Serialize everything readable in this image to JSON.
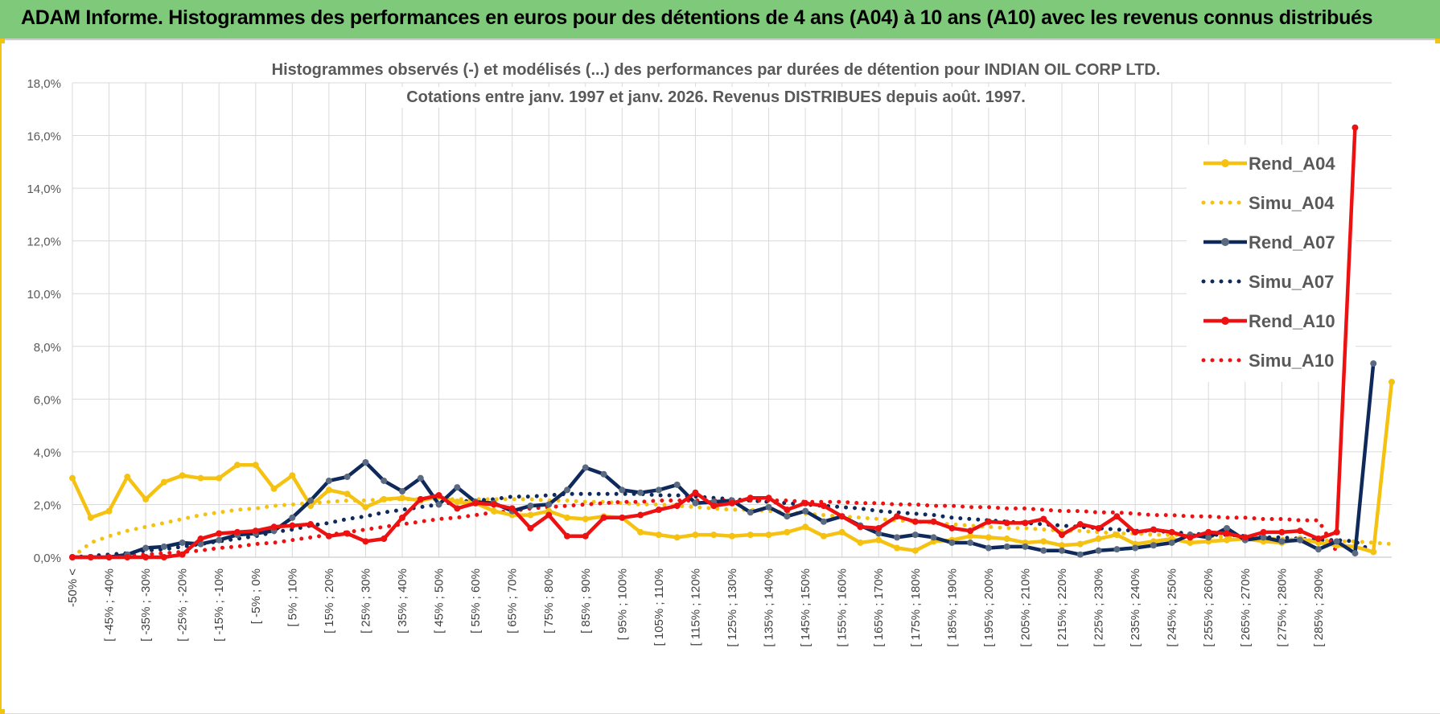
{
  "header": {
    "title": "ADAM Informe. Histogrammes des performances en euros pour des détentions de 4 ans (A04) à 10 ans (A10) avec les revenus connus distribués"
  },
  "colors": {
    "A04": "#f5c211",
    "A07": "#0f2a5a",
    "A10": "#ee1111",
    "banner": "#7ec97a"
  },
  "chart_data": {
    "type": "line",
    "title_line1": "Histogrammes observés (-) et modélisés (...) des performances par durées de détention pour INDIAN OIL CORP LTD.",
    "title_line2": "Cotations entre janv. 1997 et janv. 2026. Revenus DISTRIBUES depuis août. 1997.",
    "xlabel": "",
    "ylabel": "",
    "ylim": [
      0,
      18
    ],
    "yticks": [
      "0,0%",
      "2,0%",
      "4,0%",
      "6,0%",
      "8,0%",
      "10,0%",
      "12,0%",
      "14,0%",
      "16,0%",
      "18,0%"
    ],
    "grid": true,
    "legend_position": "top-right",
    "category_labels": [
      "-50% <",
      "[ -45% ; -40%",
      "[ -35% ; -30%",
      "[ -25% ; -20%",
      "[ -15% ; -10%",
      "[ -5% ; 0%",
      "[ 5% ; 10%",
      "[ 15% ; 20%",
      "[ 25% ; 30%",
      "[ 35% ; 40%",
      "[ 45% ; 50%",
      "[ 55% ; 60%",
      "[ 65% ; 70%",
      "[ 75% ; 80%",
      "[ 85% ; 90%",
      "[ 95% ; 100%",
      "[ 105% ; 110%",
      "[ 115% ; 120%",
      "[ 125% ; 130%",
      "[ 135% ; 140%",
      "[ 145% ; 150%",
      "[ 155% ; 160%",
      "[ 165% ; 170%",
      "[ 175% ; 180%",
      "[ 185% ; 190%",
      "[ 195% ; 200%",
      "[ 205% ; 210%",
      "[ 215% ; 220%",
      "[ 225% ; 230%",
      "[ 235% ; 240%",
      "[ 245% ; 250%",
      "[ 255% ; 260%",
      "[ 265% ; 270%",
      "[ 275% ; 280%",
      "[ 285% ; 290%"
    ],
    "series": [
      {
        "name": "Rend_A04",
        "style": "solid",
        "color": "#f5c211",
        "values": [
          3.0,
          1.5,
          1.75,
          3.05,
          2.2,
          2.85,
          3.1,
          3.0,
          3.0,
          3.5,
          3.5,
          2.6,
          3.1,
          1.95,
          2.55,
          2.4,
          1.9,
          2.2,
          2.25,
          2.15,
          2.3,
          2.1,
          2.05,
          1.75,
          1.6,
          1.6,
          1.75,
          1.5,
          1.45,
          1.55,
          1.5,
          0.95,
          0.85,
          0.75,
          0.85,
          0.85,
          0.8,
          0.85,
          0.85,
          0.95,
          1.15,
          0.8,
          0.95,
          0.55,
          0.65,
          0.35,
          0.25,
          0.6,
          0.65,
          0.8,
          0.75,
          0.7,
          0.55,
          0.6,
          0.45,
          0.5,
          0.7,
          0.85,
          0.5,
          0.6,
          0.7,
          0.55,
          0.6,
          0.65,
          0.7,
          0.6,
          0.55,
          0.7,
          0.55,
          0.45,
          0.4,
          0.2,
          6.65
        ]
      },
      {
        "name": "Simu_A04",
        "style": "dotted",
        "color": "#f5c211",
        "values": [
          0.0,
          0.55,
          0.8,
          1.0,
          1.15,
          1.3,
          1.45,
          1.6,
          1.7,
          1.8,
          1.85,
          1.95,
          2.0,
          2.05,
          2.1,
          2.15,
          2.15,
          2.2,
          2.2,
          2.2,
          2.2,
          2.2,
          2.2,
          2.2,
          2.2,
          2.2,
          2.15,
          2.15,
          2.1,
          2.1,
          2.05,
          2.0,
          2.0,
          1.95,
          1.9,
          1.85,
          1.8,
          1.8,
          1.75,
          1.7,
          1.65,
          1.6,
          1.55,
          1.5,
          1.45,
          1.4,
          1.35,
          1.3,
          1.25,
          1.2,
          1.15,
          1.1,
          1.1,
          1.05,
          1.0,
          1.0,
          0.95,
          0.9,
          0.9,
          0.85,
          0.85,
          0.8,
          0.8,
          0.75,
          0.75,
          0.7,
          0.7,
          0.65,
          0.65,
          0.6,
          0.6,
          0.55,
          0.5
        ]
      },
      {
        "name": "Rend_A07",
        "style": "solid",
        "color": "#0f2a5a",
        "values": [
          0.0,
          0.0,
          0.0,
          0.1,
          0.35,
          0.4,
          0.55,
          0.5,
          0.65,
          0.85,
          0.9,
          1.0,
          1.5,
          2.15,
          2.9,
          3.05,
          3.6,
          2.9,
          2.5,
          3.0,
          2.0,
          2.65,
          2.1,
          2.05,
          1.75,
          1.95,
          2.0,
          2.55,
          3.4,
          3.15,
          2.55,
          2.45,
          2.55,
          2.75,
          2.05,
          2.1,
          2.15,
          1.7,
          1.9,
          1.55,
          1.75,
          1.35,
          1.55,
          1.2,
          0.9,
          0.75,
          0.85,
          0.75,
          0.55,
          0.55,
          0.35,
          0.4,
          0.4,
          0.25,
          0.25,
          0.1,
          0.25,
          0.3,
          0.35,
          0.45,
          0.55,
          0.85,
          0.75,
          1.1,
          0.65,
          0.75,
          0.6,
          0.65,
          0.3,
          0.6,
          0.15,
          7.35
        ]
      },
      {
        "name": "Simu_A07",
        "style": "dotted",
        "color": "#0f2a5a",
        "values": [
          0.0,
          0.05,
          0.1,
          0.15,
          0.25,
          0.3,
          0.4,
          0.5,
          0.6,
          0.7,
          0.8,
          0.95,
          1.05,
          1.2,
          1.3,
          1.45,
          1.55,
          1.7,
          1.8,
          1.9,
          2.0,
          2.1,
          2.15,
          2.2,
          2.3,
          2.3,
          2.35,
          2.4,
          2.4,
          2.4,
          2.4,
          2.4,
          2.35,
          2.35,
          2.3,
          2.25,
          2.2,
          2.15,
          2.1,
          2.05,
          2.0,
          1.95,
          1.9,
          1.85,
          1.75,
          1.7,
          1.65,
          1.6,
          1.5,
          1.45,
          1.4,
          1.35,
          1.3,
          1.25,
          1.2,
          1.15,
          1.1,
          1.05,
          1.0,
          1.0,
          0.95,
          0.9,
          0.85,
          0.85,
          0.8,
          0.75,
          0.75,
          0.7,
          0.65,
          0.65,
          0.6,
          0.2
        ]
      },
      {
        "name": "Rend_A10",
        "style": "solid",
        "color": "#ee1111",
        "values": [
          0.0,
          0.0,
          0.0,
          0.0,
          0.0,
          0.0,
          0.1,
          0.7,
          0.9,
          0.95,
          1.0,
          1.15,
          1.2,
          1.25,
          0.8,
          0.9,
          0.6,
          0.7,
          1.5,
          2.2,
          2.35,
          1.85,
          2.05,
          2.0,
          1.85,
          1.1,
          1.6,
          0.8,
          0.8,
          1.5,
          1.5,
          1.6,
          1.8,
          1.95,
          2.45,
          1.95,
          2.05,
          2.25,
          2.25,
          1.8,
          2.05,
          1.95,
          1.55,
          1.15,
          1.1,
          1.55,
          1.35,
          1.35,
          1.1,
          1.0,
          1.35,
          1.3,
          1.3,
          1.45,
          0.85,
          1.25,
          1.1,
          1.55,
          0.95,
          1.05,
          0.95,
          0.75,
          0.95,
          0.9,
          0.75,
          0.95,
          0.95,
          1.0,
          0.7,
          0.95,
          16.3
        ]
      },
      {
        "name": "Simu_A10",
        "style": "dotted",
        "color": "#ee1111",
        "values": [
          0.0,
          0.0,
          0.0,
          0.05,
          0.1,
          0.15,
          0.2,
          0.25,
          0.35,
          0.4,
          0.5,
          0.55,
          0.65,
          0.75,
          0.85,
          0.95,
          1.05,
          1.15,
          1.25,
          1.35,
          1.45,
          1.5,
          1.6,
          1.7,
          1.75,
          1.85,
          1.9,
          1.95,
          2.0,
          2.05,
          2.1,
          2.1,
          2.15,
          2.15,
          2.15,
          2.15,
          2.15,
          2.15,
          2.15,
          2.15,
          2.1,
          2.1,
          2.1,
          2.05,
          2.05,
          2.0,
          2.0,
          1.95,
          1.95,
          1.9,
          1.9,
          1.85,
          1.85,
          1.8,
          1.75,
          1.75,
          1.7,
          1.7,
          1.65,
          1.6,
          1.6,
          1.55,
          1.55,
          1.5,
          1.5,
          1.45,
          1.45,
          1.4,
          1.4,
          0.2
        ]
      }
    ]
  }
}
